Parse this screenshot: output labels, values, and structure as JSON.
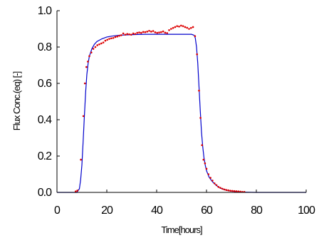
{
  "chart_data": {
    "type": "line",
    "title": "",
    "xlabel": "Time[hours]",
    "ylabel": "Flux Conc.(eq) [-]",
    "xlim": [
      0,
      100
    ],
    "ylim": [
      0,
      1.0
    ],
    "x_ticks": [
      "0",
      "20",
      "40",
      "60",
      "80",
      "100"
    ],
    "y_ticks": [
      "0.0",
      "0.2",
      "0.4",
      "0.6",
      "0.8",
      "1.0"
    ],
    "grid": false,
    "legend": "none",
    "series": [
      {
        "kind": "line",
        "color": "#0000cc",
        "x": [
          0,
          8,
          9,
          9.5,
          10,
          10.5,
          11,
          11.5,
          12,
          12.5,
          13,
          14,
          15,
          16,
          18,
          20,
          22,
          25,
          30,
          35,
          40,
          45,
          50,
          54,
          55,
          55.5,
          56,
          56.5,
          57,
          57.5,
          58,
          58.5,
          59,
          59.5,
          60,
          61,
          62,
          63,
          64,
          65,
          66,
          68,
          70,
          72,
          74,
          76,
          80,
          90,
          100
        ],
        "y": [
          0,
          0,
          0.02,
          0.07,
          0.15,
          0.28,
          0.42,
          0.55,
          0.65,
          0.71,
          0.75,
          0.79,
          0.815,
          0.83,
          0.845,
          0.855,
          0.86,
          0.865,
          0.868,
          0.87,
          0.87,
          0.87,
          0.87,
          0.87,
          0.865,
          0.85,
          0.8,
          0.71,
          0.58,
          0.45,
          0.33,
          0.25,
          0.19,
          0.15,
          0.12,
          0.085,
          0.065,
          0.05,
          0.038,
          0.028,
          0.021,
          0.012,
          0.007,
          0.004,
          0.002,
          0.001,
          0,
          0,
          0
        ]
      },
      {
        "kind": "scatter",
        "color": "#dd0000",
        "x": [
          7.5,
          8.2,
          9.6,
          10.6,
          11.2,
          11.8,
          12.4,
          13,
          13.8,
          14.6,
          15.4,
          16.2,
          17,
          17.8,
          18.6,
          19.4,
          20.2,
          21,
          21.8,
          22.6,
          23.4,
          24.2,
          25,
          25.8,
          26.6,
          27.4,
          28.2,
          29,
          29.8,
          30.6,
          31.4,
          32.2,
          33,
          33.8,
          34.6,
          35.4,
          36.2,
          37,
          37.8,
          38.6,
          39.4,
          40.2,
          41,
          41.8,
          42.6,
          43.4,
          44.2,
          45,
          45.8,
          46.6,
          47.4,
          48.2,
          49,
          49.8,
          50.6,
          51.4,
          52.2,
          53,
          53.8,
          54.6,
          55.4,
          56.2,
          57,
          57.6,
          58.2,
          58.8,
          59.4,
          60,
          60.8,
          61.6,
          62.4,
          63.2,
          64,
          64.8,
          65.6,
          66.4,
          67.2,
          68,
          68.8,
          69.6,
          70.4,
          71.2,
          72,
          72.8,
          73.6,
          74.4,
          75.2
        ],
        "y": [
          0.005,
          0.01,
          0.18,
          0.42,
          0.6,
          0.69,
          0.72,
          0.75,
          0.77,
          0.79,
          0.8,
          0.81,
          0.815,
          0.82,
          0.825,
          0.835,
          0.84,
          0.845,
          0.848,
          0.85,
          0.855,
          0.858,
          0.862,
          0.865,
          0.875,
          0.868,
          0.872,
          0.87,
          0.868,
          0.875,
          0.872,
          0.878,
          0.88,
          0.878,
          0.883,
          0.882,
          0.885,
          0.889,
          0.885,
          0.888,
          0.881,
          0.878,
          0.88,
          0.882,
          0.886,
          0.879,
          0.877,
          0.893,
          0.9,
          0.905,
          0.91,
          0.915,
          0.913,
          0.918,
          0.915,
          0.91,
          0.906,
          0.9,
          0.905,
          0.91,
          0.86,
          0.76,
          0.56,
          0.41,
          0.26,
          0.18,
          0.16,
          0.13,
          0.1,
          0.08,
          0.065,
          0.05,
          0.04,
          0.03,
          0.025,
          0.02,
          0.016,
          0.013,
          0.011,
          0.009,
          0.008,
          0.007,
          0.006,
          0.005,
          0.004,
          0.003,
          0.003
        ]
      }
    ]
  }
}
